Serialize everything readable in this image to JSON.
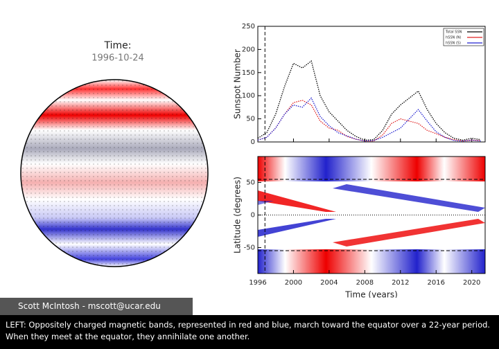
{
  "globe": {
    "title": "Time:",
    "date": "1996-10-24"
  },
  "credit": "Scott McIntosh - mscott@ucar.edu",
  "caption": "LEFT: Oppositely charged magnetic bands, represented in red and blue, march toward the equator over a 22-year period. When they meet at the equator, they annihilate one another.",
  "chart_data": [
    {
      "type": "line",
      "ylabel": "Sunspot Number",
      "x": [
        1996,
        1997,
        1998,
        1999,
        2000,
        2001,
        2002,
        2003,
        2004,
        2005,
        2006,
        2007,
        2008,
        2009,
        2010,
        2011,
        2012,
        2013,
        2014,
        2015,
        2016,
        2017,
        2018,
        2019,
        2020,
        2021
      ],
      "series": [
        {
          "name": "Total SSN",
          "color": "#000000",
          "values": [
            8,
            20,
            60,
            120,
            170,
            160,
            175,
            100,
            65,
            45,
            25,
            12,
            4,
            5,
            25,
            60,
            80,
            95,
            110,
            70,
            40,
            20,
            8,
            4,
            8,
            5
          ]
        },
        {
          "name": "hSSN (N)",
          "color": "#e02020",
          "values": [
            4,
            10,
            30,
            60,
            85,
            90,
            80,
            45,
            30,
            25,
            12,
            6,
            2,
            2,
            15,
            40,
            50,
            45,
            40,
            25,
            18,
            10,
            5,
            2,
            4,
            3
          ]
        },
        {
          "name": "hSSN (S)",
          "color": "#2020d0",
          "values": [
            4,
            10,
            30,
            60,
            80,
            75,
            95,
            55,
            35,
            20,
            13,
            6,
            2,
            3,
            10,
            20,
            30,
            50,
            70,
            45,
            22,
            10,
            3,
            2,
            4,
            2
          ]
        }
      ],
      "xlim": [
        1996,
        2021.5
      ],
      "xticks": [
        1996,
        2000,
        2004,
        2008,
        2012,
        2016,
        2020
      ],
      "ylim": [
        0,
        250
      ],
      "yticks": [
        0,
        50,
        100,
        150,
        200,
        250
      ],
      "marker_x": 1996.8,
      "legend": "upper right"
    },
    {
      "type": "heatmap",
      "xlabel": "Time (years)",
      "ylabel": "Latitude (degrees)",
      "xlim": [
        1996,
        2021.5
      ],
      "xticks": [
        1996,
        2000,
        2004,
        2008,
        2012,
        2016,
        2020
      ],
      "ylim": [
        -90,
        90
      ],
      "yticks": [
        -50,
        0,
        50
      ],
      "marker_x": 1996.8
    }
  ]
}
